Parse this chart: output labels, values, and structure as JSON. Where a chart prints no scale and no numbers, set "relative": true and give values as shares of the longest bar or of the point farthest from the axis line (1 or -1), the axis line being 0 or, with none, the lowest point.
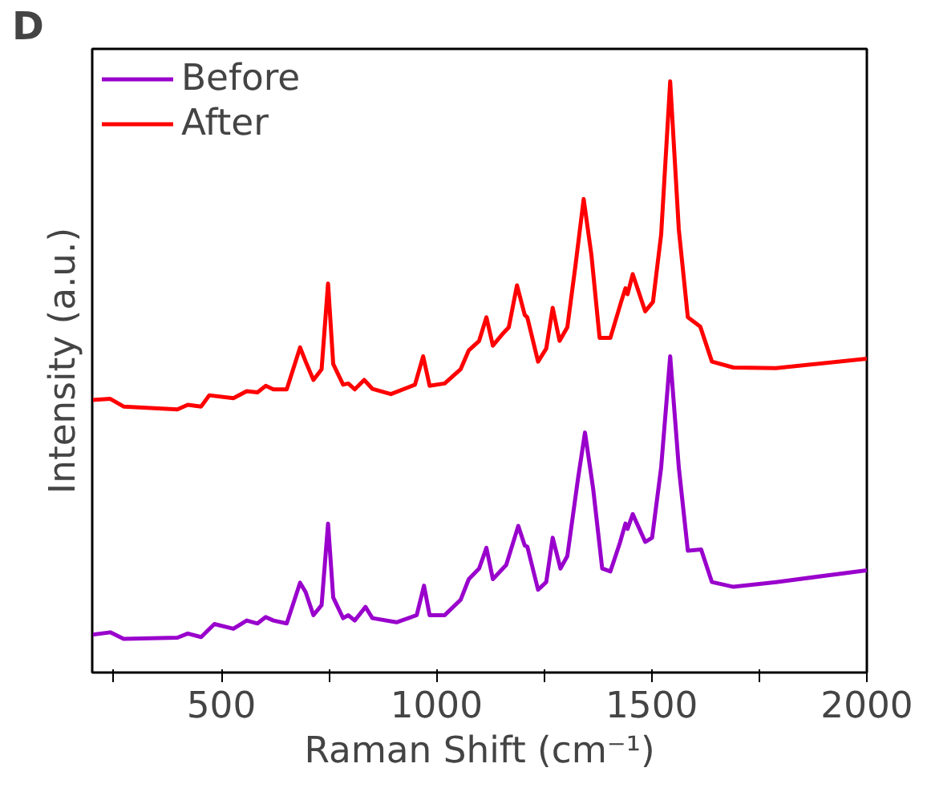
{
  "chart_data": {
    "type": "line",
    "relative": true,
    "xlabel": "Raman Shift (cm⁻¹)",
    "ylabel": "Intensity (a.u.)",
    "annotations": [
      "D"
    ],
    "legend": "top left",
    "grid": false,
    "xlim": [
      200,
      2000
    ],
    "xticks": [
      {
        "value": 250,
        "label": null
      },
      500,
      {
        "value": 750,
        "label": null
      },
      1000,
      {
        "value": 1250,
        "label": null
      },
      1500,
      {
        "value": 1750,
        "label": null
      },
      2000
    ],
    "series": [
      {
        "name": "Before",
        "color": "#9900cc",
        "x": [
          200,
          242,
          273,
          398,
          422,
          453,
          484,
          528,
          559,
          584,
          603,
          621,
          652,
          683,
          696,
          714,
          733,
          748,
          760,
          783,
          795,
          810,
          835,
          851,
          907,
          954,
          971,
          984,
          1019,
          1056,
          1075,
          1099,
          1116,
          1131,
          1162,
          1190,
          1205,
          1211,
          1236,
          1255,
          1270,
          1288,
          1304,
          1329,
          1345,
          1364,
          1385,
          1404,
          1426,
          1439,
          1444,
          1456,
          1485,
          1501,
          1522,
          1543,
          1563,
          1584,
          1615,
          1640,
          1690,
          1789,
          2000
        ],
        "values": [
          0.064,
          0.068,
          0.057,
          0.059,
          0.066,
          0.06,
          0.082,
          0.074,
          0.088,
          0.083,
          0.094,
          0.088,
          0.083,
          0.152,
          0.136,
          0.097,
          0.114,
          0.252,
          0.127,
          0.092,
          0.097,
          0.088,
          0.111,
          0.092,
          0.085,
          0.097,
          0.147,
          0.097,
          0.097,
          0.123,
          0.158,
          0.176,
          0.211,
          0.158,
          0.182,
          0.248,
          0.215,
          0.213,
          0.14,
          0.153,
          0.228,
          0.176,
          0.197,
          0.329,
          0.406,
          0.311,
          0.176,
          0.171,
          0.219,
          0.252,
          0.243,
          0.268,
          0.221,
          0.228,
          0.347,
          0.535,
          0.347,
          0.206,
          0.208,
          0.153,
          0.145,
          0.153,
          0.173
        ]
      },
      {
        "name": "After",
        "color": "#ff0000",
        "x": [
          200,
          242,
          273,
          398,
          422,
          453,
          472,
          528,
          559,
          584,
          603,
          621,
          652,
          683,
          696,
          714,
          733,
          748,
          760,
          783,
          795,
          810,
          832,
          851,
          894,
          950,
          969,
          984,
          1019,
          1056,
          1075,
          1099,
          1116,
          1131,
          1155,
          1168,
          1187,
          1205,
          1211,
          1236,
          1255,
          1270,
          1286,
          1304,
          1323,
          1342,
          1360,
          1379,
          1404,
          1429,
          1439,
          1444,
          1456,
          1485,
          1503,
          1522,
          1543,
          1563,
          1584,
          1613,
          1640,
          1690,
          1789,
          2000
        ],
        "values": [
          0.461,
          0.463,
          0.45,
          0.445,
          0.453,
          0.45,
          0.469,
          0.464,
          0.476,
          0.474,
          0.485,
          0.479,
          0.479,
          0.55,
          0.526,
          0.495,
          0.513,
          0.658,
          0.522,
          0.487,
          0.489,
          0.479,
          0.495,
          0.48,
          0.471,
          0.487,
          0.535,
          0.485,
          0.489,
          0.513,
          0.545,
          0.561,
          0.601,
          0.553,
          0.574,
          0.584,
          0.655,
          0.605,
          0.601,
          0.526,
          0.548,
          0.617,
          0.561,
          0.584,
          0.689,
          0.801,
          0.706,
          0.566,
          0.566,
          0.627,
          0.65,
          0.64,
          0.674,
          0.611,
          0.627,
          0.741,
          1,
          0.75,
          0.601,
          0.585,
          0.526,
          0.516,
          0.515,
          0.531
        ]
      }
    ]
  }
}
